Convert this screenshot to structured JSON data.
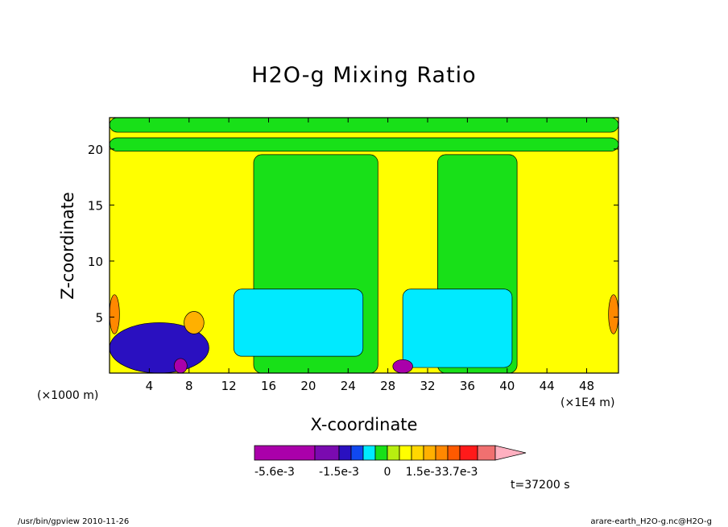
{
  "chart_data": {
    "type": "heatmap",
    "title": "H2O-g Mixing Ratio",
    "xlabel": "X-coordinate",
    "ylabel": "Z-coordinate",
    "x_unit": "(×1000 m)",
    "x_unit2": "(×1E4 m)",
    "x_ticks": [
      4,
      8,
      12,
      16,
      20,
      24,
      28,
      32,
      36,
      40,
      44,
      48
    ],
    "y_ticks": [
      5,
      10,
      15,
      20
    ],
    "xlim": [
      0,
      51.2
    ],
    "ylim": [
      0,
      22.8
    ],
    "colorbar": {
      "colors": [
        "#aa00aa",
        "#7a0ab0",
        "#2a10c0",
        "#1048f0",
        "#00eaff",
        "#18e018",
        "#b8ee10",
        "#ffff00",
        "#ffd700",
        "#ffb000",
        "#ff8800",
        "#ff5a00",
        "#ff1a1a",
        "#f07070",
        "#ffb0c0"
      ],
      "labels": [
        "-5.6e-3",
        "-1.5e-3",
        "0",
        "1.5e-3",
        "3.7e-3"
      ]
    },
    "time_label": "t=37200 s",
    "field_zones": [
      {
        "level": "yellow",
        "color": "#ffff00",
        "x": [
          0,
          51.2
        ],
        "z": [
          0,
          22.8
        ]
      },
      {
        "level": "green-top",
        "color": "#18e018",
        "x": [
          0,
          51.2
        ],
        "z": [
          21.5,
          22.8
        ]
      },
      {
        "level": "green-band",
        "color": "#18e018",
        "x": [
          0,
          51.2
        ],
        "z": [
          19.8,
          21.0
        ]
      },
      {
        "level": "green-plume-left",
        "color": "#18e018",
        "x": [
          14.5,
          27
        ],
        "z": [
          0,
          19.5
        ]
      },
      {
        "level": "green-plume-right",
        "color": "#18e018",
        "x": [
          33,
          41
        ],
        "z": [
          0,
          19.5
        ]
      },
      {
        "level": "cyan-left",
        "color": "#00eaff",
        "x": [
          12.5,
          25.5
        ],
        "z": [
          1.5,
          7.5
        ]
      },
      {
        "level": "cyan-right",
        "color": "#00eaff",
        "x": [
          29.5,
          40.5
        ],
        "z": [
          0.5,
          7.5
        ]
      },
      {
        "level": "blue-left",
        "color": "#2a10c0",
        "x": [
          0,
          10
        ],
        "z": [
          0,
          4.5
        ]
      },
      {
        "level": "purple-left",
        "color": "#aa00aa",
        "x": [
          6.5,
          7.8
        ],
        "z": [
          0,
          1.3
        ]
      },
      {
        "level": "purple-mid",
        "color": "#aa00aa",
        "x": [
          28.5,
          30.5
        ],
        "z": [
          0,
          1.2
        ]
      },
      {
        "level": "orange-left",
        "color": "#ffb000",
        "x": [
          7.5,
          9.5
        ],
        "z": [
          3.5,
          5.5
        ]
      },
      {
        "level": "orange-edge-left",
        "color": "#ff8800",
        "x": [
          0,
          1
        ],
        "z": [
          3.5,
          7
        ]
      },
      {
        "level": "orange-edge-right",
        "color": "#ff8800",
        "x": [
          50.2,
          51.2
        ],
        "z": [
          3.5,
          7
        ]
      }
    ]
  },
  "footer": {
    "left": "/usr/bin/gpview   2010-11-26",
    "right": "arare-earth_H2O-g.nc@H2O-g"
  }
}
